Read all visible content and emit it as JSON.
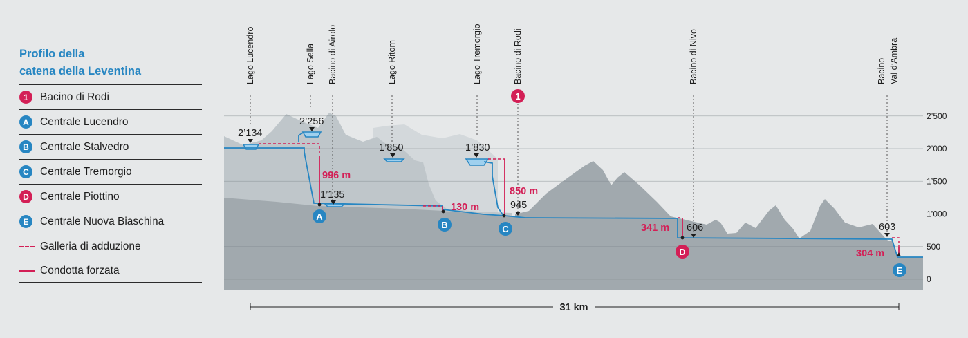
{
  "legend": {
    "title_line1": "Profilo della",
    "title_line2": "catena della Leventina",
    "items": [
      {
        "marker": "1",
        "label": "Bacino di Rodi",
        "color": "#d31f56"
      },
      {
        "marker": "A",
        "label": "Centrale Lucendro",
        "color": "#2786c2"
      },
      {
        "marker": "B",
        "label": "Centrale Stalvedro",
        "color": "#2786c2"
      },
      {
        "marker": "C",
        "label": "Centrale Tremorgio",
        "color": "#2786c2"
      },
      {
        "marker": "D",
        "label": "Centrale Piottino",
        "color": "#d31f56"
      },
      {
        "marker": "E",
        "label": "Centrale Nuova Biaschina",
        "color": "#2786c2"
      },
      {
        "marker": "dashed-line",
        "label": "Galleria di adduzione",
        "color": "#d31f56"
      },
      {
        "marker": "solid-line",
        "label": "Condotta forzata",
        "color": "#d31f56"
      }
    ]
  },
  "top_labels": [
    {
      "lines": [
        "Lago Lucendro"
      ]
    },
    {
      "lines": [
        "Lago Sella"
      ]
    },
    {
      "lines": [
        "Bacino di Airolo"
      ]
    },
    {
      "lines": [
        "Lago Ritom"
      ]
    },
    {
      "lines": [
        "Lago Tremorgio"
      ]
    },
    {
      "lines": [
        "Bacino di Rodi"
      ]
    },
    {
      "lines": [
        "Bacino di Nivo"
      ]
    },
    {
      "lines": [
        "Bacino",
        "Val d’Ambra"
      ]
    }
  ],
  "elevation_axis": {
    "ticks": [
      {
        "value": 2500,
        "label": "2’500"
      },
      {
        "value": 2000,
        "label": "2’000"
      },
      {
        "value": 1500,
        "label": "1’500"
      },
      {
        "value": 1000,
        "label": "1’000"
      },
      {
        "value": 500,
        "label": "500"
      },
      {
        "value": 0,
        "label": "0"
      }
    ]
  },
  "elevation_labels": [
    {
      "text": "2’134",
      "elevation": 2134
    },
    {
      "text": "2’256",
      "elevation": 2256
    },
    {
      "text": "1’850",
      "elevation": 1850
    },
    {
      "text": "1’830",
      "elevation": 1830
    },
    {
      "text": "1’135",
      "elevation": 1135
    },
    {
      "text": "945",
      "elevation": 945
    },
    {
      "text": "606",
      "elevation": 606
    },
    {
      "text": "603",
      "elevation": 603
    }
  ],
  "head_labels": [
    {
      "text": "996 m",
      "value_m": 996
    },
    {
      "text": "850 m",
      "value_m": 850
    },
    {
      "text": "130 m",
      "value_m": 130
    },
    {
      "text": "341 m",
      "value_m": 341
    },
    {
      "text": "304 m",
      "value_m": 304
    }
  ],
  "plant_markers": [
    {
      "text": "A",
      "color": "#2786c2"
    },
    {
      "text": "B",
      "color": "#2786c2"
    },
    {
      "text": "C",
      "color": "#2786c2"
    },
    {
      "text": "D",
      "color": "#d31f56"
    },
    {
      "text": "E",
      "color": "#2786c2"
    },
    {
      "text": "1",
      "color": "#d31f56"
    }
  ],
  "distance": {
    "label": "31 km"
  },
  "colors": {
    "blue": "#2786c2",
    "red": "#d31f56",
    "background": "#e6e8e9",
    "terrain_dark": "#a1a9ae",
    "terrain_mid": "#bfc6ca",
    "terrain_light": "#d3d8db",
    "water": "#9fd0ee"
  }
}
